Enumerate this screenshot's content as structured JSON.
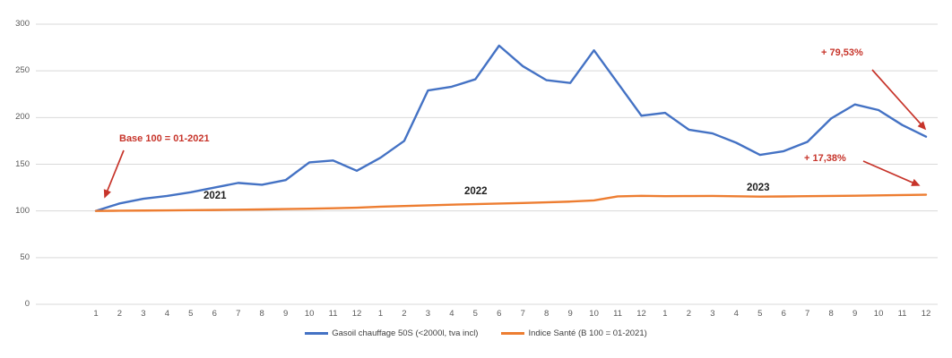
{
  "chart_data": {
    "type": "line",
    "x_tick_labels": [
      "1",
      "2",
      "3",
      "4",
      "5",
      "6",
      "7",
      "8",
      "9",
      "10",
      "11",
      "12",
      "1",
      "2",
      "3",
      "4",
      "5",
      "6",
      "7",
      "8",
      "9",
      "10",
      "11",
      "12",
      "1",
      "2",
      "3",
      "4",
      "5",
      "6",
      "7",
      "8",
      "9",
      "10",
      "11",
      "12"
    ],
    "year_labels": [
      "2021",
      "2022",
      "2023"
    ],
    "y_ticks": [
      0,
      50,
      100,
      150,
      200,
      250,
      300
    ],
    "ylim": [
      0,
      300
    ],
    "grid": true,
    "legend_position": "bottom",
    "series": [
      {
        "name": "Gasoil chauffage 50S (<2000l, tva incl)",
        "color": "#4472C4",
        "values": [
          100,
          108,
          113,
          116,
          120,
          125,
          130,
          128,
          133,
          152,
          154,
          143,
          157,
          175,
          229,
          233,
          241,
          277,
          255,
          240,
          237,
          272,
          237,
          202,
          205,
          187,
          183,
          173,
          160,
          164,
          174,
          199,
          214,
          208,
          192,
          179.5
        ]
      },
      {
        "name": "Indice Santé (B 100 = 01-2021)",
        "color": "#ED7D31",
        "values": [
          100,
          100.2,
          100.4,
          100.6,
          100.8,
          101,
          101.3,
          101.6,
          102,
          102.4,
          102.9,
          103.5,
          104.5,
          105.3,
          106,
          106.7,
          107.3,
          107.9,
          108.5,
          109.2,
          110,
          111.2,
          115.6,
          116.2,
          115.8,
          115.9,
          116,
          115.7,
          115.3,
          115.5,
          115.8,
          116,
          116.3,
          116.6,
          117,
          117.4
        ]
      }
    ],
    "annotations": [
      {
        "text": "Base 100 = 01-2021"
      },
      {
        "text": "+ 79,53%"
      },
      {
        "text": "+ 17,38%"
      }
    ],
    "annotation_color": "#C7342A"
  }
}
